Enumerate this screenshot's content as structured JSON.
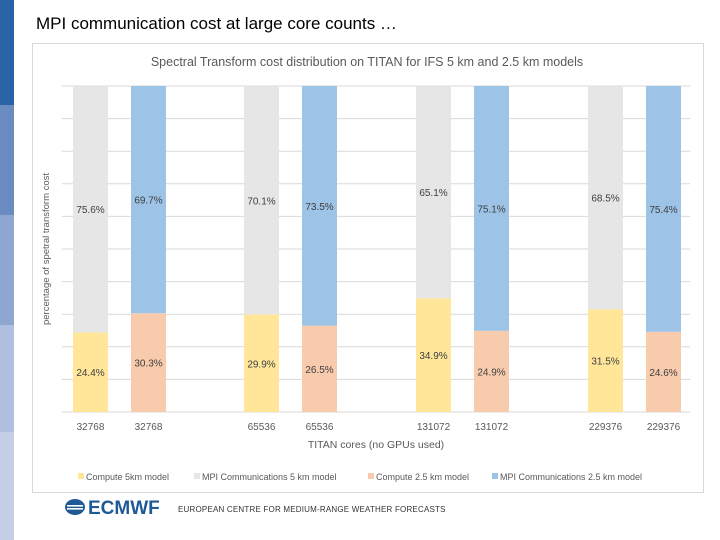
{
  "slide": {
    "title": "MPI communication cost at large core counts …",
    "footer_logo": "ECMWF",
    "footer_text": "EUROPEAN CENTRE FOR MEDIUM-RANGE WEATHER FORECASTS",
    "sidebar_colors": [
      "#2a63a6",
      "#6b8cc0",
      "#8ea6d0",
      "#aebfe0",
      "#c5d0e8"
    ]
  },
  "chart_data": {
    "type": "bar",
    "stacked": true,
    "title": "Spectral Transform cost distribution on TITAN for IFS 5 km and 2.5 km models",
    "xlabel": "TITAN cores (no GPUs used)",
    "ylabel": "percentage of spetral transform cost",
    "ylim": [
      0,
      100
    ],
    "grid": true,
    "legend_position": "bottom",
    "categories": [
      "32768",
      "32768",
      "65536",
      "65536",
      "131072",
      "131072",
      "229376",
      "229376"
    ],
    "bars": [
      {
        "model": "5km",
        "compute": 24.4,
        "mpi": 75.6,
        "compute_label": "24.4%",
        "mpi_label": "75.6%"
      },
      {
        "model": "2.5km",
        "compute": 30.3,
        "mpi": 69.7,
        "compute_label": "30.3%",
        "mpi_label": "69.7%"
      },
      {
        "model": "5km",
        "compute": 29.9,
        "mpi": 70.1,
        "compute_label": "29.9%",
        "mpi_label": "70.1%"
      },
      {
        "model": "2.5km",
        "compute": 26.5,
        "mpi": 73.5,
        "compute_label": "26.5%",
        "mpi_label": "73.5%"
      },
      {
        "model": "5km",
        "compute": 34.9,
        "mpi": 65.1,
        "compute_label": "34.9%",
        "mpi_label": "65.1%"
      },
      {
        "model": "2.5km",
        "compute": 24.9,
        "mpi": 75.1,
        "compute_label": "24.9%",
        "mpi_label": "75.1%"
      },
      {
        "model": "5km",
        "compute": 31.5,
        "mpi": 68.5,
        "compute_label": "31.5%",
        "mpi_label": "68.5%"
      },
      {
        "model": "2.5km",
        "compute": 24.6,
        "mpi": 75.4,
        "compute_label": "24.6%",
        "mpi_label": "75.4%"
      }
    ],
    "series": [
      {
        "name": "Compute 5km model",
        "color": "#ffe699"
      },
      {
        "name": "MPI Communications 5 km model",
        "color": "#e7e6e6"
      },
      {
        "name": "Compute 2.5 km model",
        "color": "#f8cbad"
      },
      {
        "name": "MPI Communications 2.5 km model",
        "color": "#9dc3e6"
      }
    ]
  }
}
